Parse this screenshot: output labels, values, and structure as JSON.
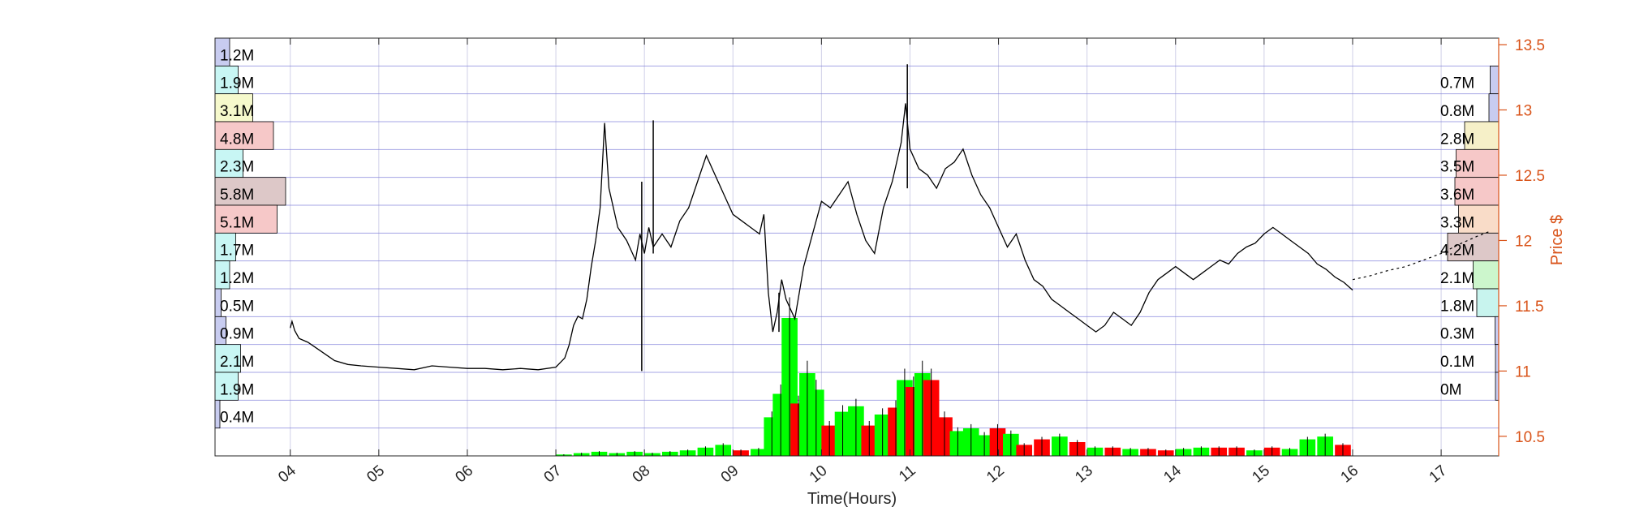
{
  "colors": {
    "price_axis": "#D95319",
    "price_line": "#000000",
    "volume_up": "#00FF00",
    "volume_down": "#FF0000",
    "price_gridline": "#7F7FD9",
    "time_gridline": "#D0D0E8",
    "profile_palette": {
      "blue": "#C8CCF0",
      "cyan": "#C8F6F4",
      "yellow": "#F6F9CC",
      "red": "#F6C8C8",
      "mauve": "#DDC8C8",
      "orange": "#F9DCC8",
      "green": "#CCF6CC",
      "teal": "#C8F4EE",
      "sand": "#F6F0C8"
    }
  },
  "chart_data": {
    "type": "line",
    "title": "",
    "xlabel": "Time(Hours)",
    "ylabel": "Price $",
    "grid": true,
    "x_tick_labels": [
      "04",
      "05",
      "06",
      "07",
      "08",
      "09",
      "10",
      "11",
      "12",
      "13",
      "14",
      "15",
      "16",
      "17"
    ],
    "x_tick_values": [
      4,
      5,
      6,
      7,
      8,
      9,
      10,
      11,
      12,
      13,
      14,
      15,
      16,
      17
    ],
    "xlim": [
      3.15,
      17.65
    ],
    "y_tick_labels": [
      "10.5",
      "11",
      "11.5",
      "12",
      "12.5",
      "13",
      "13.5"
    ],
    "y_tick_values": [
      10.5,
      11,
      11.5,
      12,
      12.5,
      13,
      13.5
    ],
    "ylim": [
      10.35,
      13.55
    ],
    "price_series": {
      "name": "",
      "x": [
        4.0,
        4.02,
        4.05,
        4.1,
        4.2,
        4.35,
        4.5,
        4.65,
        4.8,
        5.0,
        5.2,
        5.4,
        5.6,
        5.8,
        6.0,
        6.2,
        6.4,
        6.6,
        6.8,
        7.0,
        7.1,
        7.15,
        7.2,
        7.25,
        7.3,
        7.35,
        7.4,
        7.45,
        7.5,
        7.55,
        7.6,
        7.7,
        7.8,
        7.9,
        7.95,
        8.0,
        8.05,
        8.1,
        8.2,
        8.3,
        8.4,
        8.5,
        8.6,
        8.7,
        8.8,
        8.9,
        9.0,
        9.1,
        9.2,
        9.3,
        9.35,
        9.4,
        9.45,
        9.5,
        9.55,
        9.6,
        9.7,
        9.8,
        9.9,
        10.0,
        10.1,
        10.2,
        10.3,
        10.4,
        10.5,
        10.6,
        10.7,
        10.8,
        10.85,
        10.9,
        10.95,
        11.0,
        11.1,
        11.2,
        11.3,
        11.4,
        11.5,
        11.6,
        11.7,
        11.8,
        11.9,
        12.0,
        12.1,
        12.2,
        12.3,
        12.4,
        12.5,
        12.6,
        12.7,
        12.8,
        12.9,
        13.0,
        13.1,
        13.2,
        13.3,
        13.4,
        13.5,
        13.6,
        13.7,
        13.8,
        13.9,
        14.0,
        14.1,
        14.2,
        14.3,
        14.4,
        14.5,
        14.6,
        14.7,
        14.8,
        14.9,
        15.0,
        15.1,
        15.2,
        15.3,
        15.4,
        15.5,
        15.6,
        15.7,
        15.8,
        15.9,
        16.0
      ],
      "y": [
        11.33,
        11.38,
        11.31,
        11.25,
        11.22,
        11.15,
        11.08,
        11.05,
        11.04,
        11.03,
        11.02,
        11.01,
        11.04,
        11.03,
        11.02,
        11.02,
        11.01,
        11.02,
        11.01,
        11.03,
        11.1,
        11.2,
        11.35,
        11.42,
        11.4,
        11.55,
        11.8,
        12.0,
        12.25,
        12.9,
        12.4,
        12.1,
        12.0,
        11.85,
        12.05,
        11.9,
        12.1,
        11.95,
        12.05,
        11.95,
        12.15,
        12.25,
        12.45,
        12.65,
        12.5,
        12.35,
        12.2,
        12.15,
        12.1,
        12.05,
        12.2,
        11.6,
        11.3,
        11.45,
        11.7,
        11.55,
        11.4,
        11.8,
        12.05,
        12.3,
        12.25,
        12.35,
        12.45,
        12.2,
        12.0,
        11.9,
        12.25,
        12.45,
        12.6,
        12.75,
        13.05,
        12.7,
        12.55,
        12.5,
        12.4,
        12.55,
        12.6,
        12.7,
        12.5,
        12.35,
        12.25,
        12.1,
        11.95,
        12.05,
        11.85,
        11.7,
        11.65,
        11.55,
        11.5,
        11.45,
        11.4,
        11.35,
        11.3,
        11.35,
        11.45,
        11.4,
        11.35,
        11.45,
        11.6,
        11.7,
        11.75,
        11.8,
        11.75,
        11.7,
        11.75,
        11.8,
        11.85,
        11.82,
        11.9,
        11.95,
        11.98,
        12.05,
        12.1,
        12.05,
        12.0,
        11.95,
        11.9,
        11.82,
        11.78,
        11.72,
        11.68,
        11.62
      ]
    },
    "extended_series": {
      "name": "",
      "x": [
        16.0,
        16.2,
        16.4,
        16.6,
        16.8,
        17.0,
        17.2,
        17.4,
        17.55
      ],
      "y": [
        11.7,
        11.73,
        11.77,
        11.8,
        11.85,
        11.9,
        11.97,
        12.03,
        12.07
      ]
    },
    "spikes": [
      {
        "x": 7.97,
        "low": 11.0,
        "high": 12.45
      },
      {
        "x": 8.1,
        "low": 11.9,
        "high": 12.92
      },
      {
        "x": 9.52,
        "low": 11.3,
        "high": 11.6
      },
      {
        "x": 10.97,
        "low": 12.4,
        "high": 13.35
      }
    ],
    "volume_bars": {
      "x": [
        7.0,
        7.2,
        7.4,
        7.6,
        7.8,
        8.0,
        8.2,
        8.4,
        8.6,
        8.8,
        9.0,
        9.2,
        9.35,
        9.45,
        9.55,
        9.65,
        9.75,
        9.85,
        10.0,
        10.15,
        10.3,
        10.45,
        10.6,
        10.75,
        10.85,
        10.95,
        11.05,
        11.15,
        11.3,
        11.45,
        11.6,
        11.75,
        11.9,
        12.05,
        12.2,
        12.4,
        12.6,
        12.8,
        13.0,
        13.2,
        13.4,
        13.6,
        13.8,
        14.0,
        14.2,
        14.4,
        14.6,
        14.8,
        15.0,
        15.2,
        15.4,
        15.6,
        15.8
      ],
      "rel_height": [
        0.01,
        0.02,
        0.03,
        0.02,
        0.03,
        0.02,
        0.03,
        0.04,
        0.06,
        0.08,
        0.04,
        0.05,
        0.28,
        0.45,
        1.0,
        0.38,
        0.6,
        0.48,
        0.22,
        0.32,
        0.36,
        0.22,
        0.3,
        0.35,
        0.55,
        0.5,
        0.6,
        0.55,
        0.28,
        0.18,
        0.2,
        0.15,
        0.2,
        0.16,
        0.08,
        0.12,
        0.14,
        0.1,
        0.06,
        0.06,
        0.05,
        0.05,
        0.04,
        0.05,
        0.06,
        0.06,
        0.06,
        0.04,
        0.06,
        0.05,
        0.12,
        0.14,
        0.08
      ],
      "up": [
        true,
        true,
        true,
        true,
        true,
        true,
        true,
        true,
        true,
        true,
        false,
        true,
        true,
        true,
        true,
        false,
        true,
        true,
        false,
        true,
        true,
        false,
        true,
        false,
        true,
        false,
        true,
        false,
        false,
        true,
        true,
        true,
        false,
        true,
        false,
        false,
        true,
        false,
        true,
        false,
        true,
        false,
        false,
        true,
        true,
        false,
        false,
        true,
        false,
        true,
        true,
        true,
        false
      ]
    },
    "volume_profile_left": [
      {
        "label": "1.2M",
        "value": 1.2,
        "color": "blue"
      },
      {
        "label": "1.9M",
        "value": 1.9,
        "color": "cyan"
      },
      {
        "label": "3.1M",
        "value": 3.1,
        "color": "yellow"
      },
      {
        "label": "4.8M",
        "value": 4.8,
        "color": "red"
      },
      {
        "label": "2.3M",
        "value": 2.3,
        "color": "cyan"
      },
      {
        "label": "5.8M",
        "value": 5.8,
        "color": "mauve"
      },
      {
        "label": "5.1M",
        "value": 5.1,
        "color": "red"
      },
      {
        "label": "1.7M",
        "value": 1.7,
        "color": "cyan"
      },
      {
        "label": "1.2M",
        "value": 1.2,
        "color": "cyan"
      },
      {
        "label": "0.5M",
        "value": 0.5,
        "color": "blue"
      },
      {
        "label": "0.9M",
        "value": 0.9,
        "color": "blue"
      },
      {
        "label": "2.1M",
        "value": 2.1,
        "color": "cyan"
      },
      {
        "label": "1.9M",
        "value": 1.9,
        "color": "cyan"
      },
      {
        "label": "0.4M",
        "value": 0.4,
        "color": "blue"
      }
    ],
    "volume_profile_right": [
      {
        "label": "0.7M",
        "value": 0.7,
        "color": "blue"
      },
      {
        "label": "0.8M",
        "value": 0.8,
        "color": "blue"
      },
      {
        "label": "2.8M",
        "value": 2.8,
        "color": "sand"
      },
      {
        "label": "3.5M",
        "value": 3.5,
        "color": "red"
      },
      {
        "label": "3.6M",
        "value": 3.6,
        "color": "red"
      },
      {
        "label": "3.3M",
        "value": 3.3,
        "color": "orange"
      },
      {
        "label": "4.2M",
        "value": 4.2,
        "color": "mauve"
      },
      {
        "label": "2.1M",
        "value": 2.1,
        "color": "green"
      },
      {
        "label": "1.8M",
        "value": 1.8,
        "color": "teal"
      },
      {
        "label": "0.3M",
        "value": 0.3,
        "color": "blue"
      },
      {
        "label": "0.1M",
        "value": 0.1,
        "color": "blue"
      },
      {
        "label": "0M",
        "value": 0.0,
        "color": "blue"
      }
    ],
    "legend": "none"
  }
}
